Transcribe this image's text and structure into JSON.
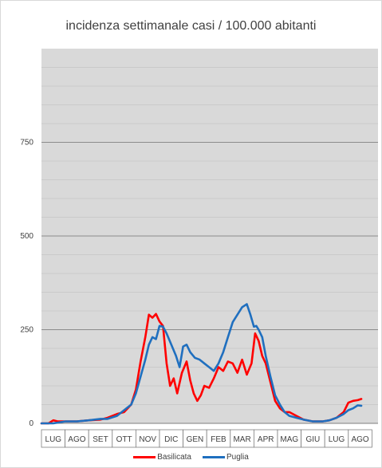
{
  "chart_data": {
    "type": "line",
    "title": "incidenza settimanale casi / 100.000 abitanti",
    "xlabel": "",
    "ylabel": "",
    "ylim": [
      0,
      1000
    ],
    "yticks": [
      0,
      250,
      500,
      750
    ],
    "grid": true,
    "legend_position": "bottom",
    "categories": [
      "LUG",
      "AGO",
      "SET",
      "OTT",
      "NOV",
      "DIC",
      "GEN",
      "FEB",
      "MAR",
      "APR",
      "MAG",
      "GIU",
      "LUG",
      "AGO"
    ],
    "series": [
      {
        "name": "Basilicata",
        "color": "#ff0000",
        "x": [
          0,
          0.3,
          0.5,
          0.7,
          1.0,
          1.5,
          2.0,
          2.5,
          2.8,
          3.2,
          3.5,
          3.8,
          4.0,
          4.2,
          4.4,
          4.55,
          4.7,
          4.85,
          5.0,
          5.15,
          5.3,
          5.45,
          5.6,
          5.75,
          5.95,
          6.15,
          6.3,
          6.45,
          6.6,
          6.75,
          6.9,
          7.1,
          7.3,
          7.5,
          7.7,
          7.9,
          8.1,
          8.3,
          8.5,
          8.7,
          8.9,
          9.05,
          9.2,
          9.35,
          9.5,
          9.7,
          9.9,
          10.1,
          10.3,
          10.5,
          10.8,
          11.1,
          11.5,
          11.9,
          12.2,
          12.5,
          12.8,
          13.0,
          13.2,
          13.4,
          13.55
        ],
        "values": [
          0,
          0,
          8,
          5,
          5,
          5,
          8,
          10,
          15,
          25,
          30,
          50,
          90,
          165,
          230,
          290,
          282,
          292,
          272,
          260,
          160,
          100,
          120,
          80,
          135,
          165,
          115,
          80,
          60,
          75,
          100,
          95,
          120,
          150,
          140,
          165,
          160,
          135,
          170,
          130,
          160,
          240,
          220,
          180,
          160,
          110,
          60,
          40,
          30,
          30,
          20,
          10,
          5,
          5,
          8,
          15,
          30,
          55,
          60,
          62,
          65
        ]
      },
      {
        "name": "Puglia",
        "color": "#1f6fbf",
        "x": [
          0,
          0.5,
          1.0,
          1.5,
          2.0,
          2.5,
          2.8,
          3.2,
          3.5,
          3.8,
          4.0,
          4.2,
          4.4,
          4.55,
          4.7,
          4.85,
          5.0,
          5.15,
          5.3,
          5.5,
          5.7,
          5.85,
          6.0,
          6.15,
          6.3,
          6.5,
          6.7,
          6.9,
          7.1,
          7.3,
          7.5,
          7.7,
          7.9,
          8.1,
          8.3,
          8.5,
          8.7,
          8.85,
          9.0,
          9.1,
          9.2,
          9.35,
          9.5,
          9.7,
          9.9,
          10.1,
          10.3,
          10.5,
          10.8,
          11.1,
          11.5,
          11.9,
          12.2,
          12.5,
          12.8,
          13.0,
          13.2,
          13.4,
          13.55
        ],
        "values": [
          0,
          0,
          5,
          5,
          8,
          12,
          12,
          20,
          35,
          50,
          80,
          125,
          170,
          210,
          230,
          225,
          260,
          258,
          240,
          210,
          180,
          150,
          205,
          210,
          190,
          175,
          170,
          160,
          150,
          140,
          160,
          190,
          230,
          270,
          290,
          310,
          318,
          290,
          258,
          260,
          250,
          230,
          180,
          125,
          75,
          50,
          30,
          20,
          15,
          10,
          5,
          5,
          8,
          15,
          25,
          35,
          40,
          48,
          47
        ]
      }
    ]
  }
}
